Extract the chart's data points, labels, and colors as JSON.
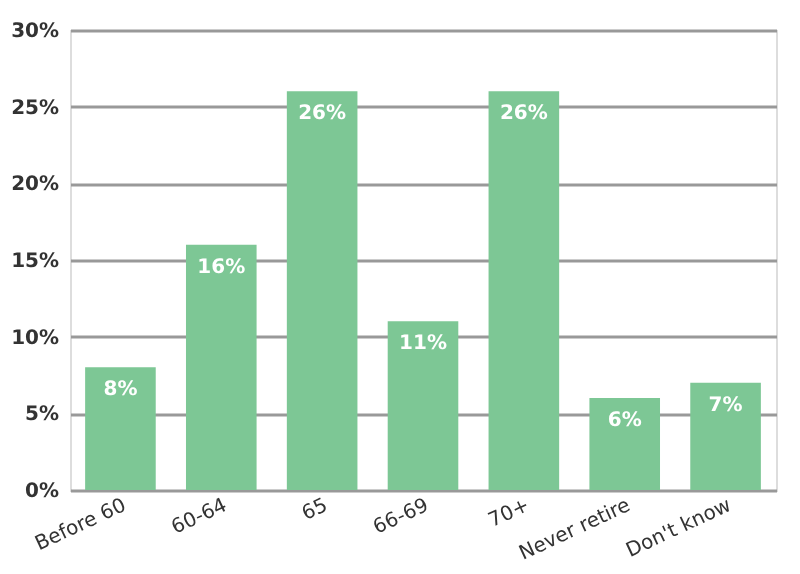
{
  "chart_data": {
    "type": "bar",
    "categories": [
      "Before 60",
      "60-64",
      "65",
      "66-69",
      "70+",
      "Never retire",
      "Don't know"
    ],
    "values": [
      8,
      16,
      26,
      11,
      26,
      6,
      7
    ],
    "value_labels": [
      "8%",
      "16%",
      "26%",
      "11%",
      "26%",
      "6%",
      "7%"
    ],
    "color": "#7dc795",
    "ylim": [
      0,
      30
    ],
    "yticks": [
      {
        "value": 0,
        "label": "0%"
      },
      {
        "value": 5,
        "label": "5%"
      },
      {
        "value": 10,
        "label": "10%"
      },
      {
        "value": 15,
        "label": "15%"
      },
      {
        "value": 20,
        "label": "20%"
      },
      {
        "value": 25,
        "label": "25%"
      },
      {
        "value": 30,
        "label": "30%"
      }
    ],
    "grid": "y"
  }
}
